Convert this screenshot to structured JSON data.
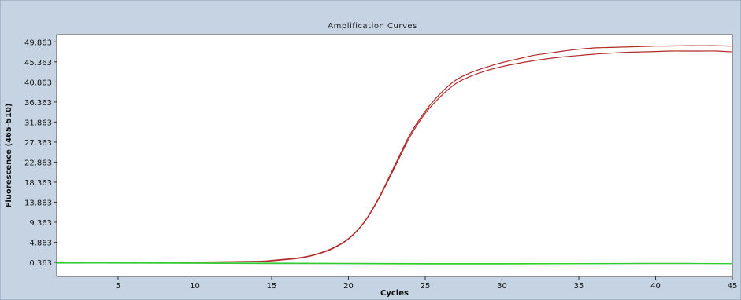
{
  "chart_data": {
    "type": "line",
    "title": "Amplification Curves",
    "xlabel": "Cycles",
    "ylabel": "Fluorescence (465-510)",
    "xlim": [
      1,
      45
    ],
    "ylim": [
      -2.8,
      51.5
    ],
    "xticks": [
      5,
      10,
      15,
      20,
      25,
      30,
      35,
      40,
      45
    ],
    "yticks": [
      0.363,
      4.863,
      9.363,
      13.863,
      18.363,
      22.863,
      27.363,
      31.863,
      36.363,
      40.863,
      45.363,
      49.863
    ],
    "ytick_labels": [
      "0.363",
      "4.863",
      "9.363",
      "13.863",
      "18.363",
      "22.863",
      "27.363",
      "31.863",
      "36.363",
      "40.863",
      "45.363",
      "49.863"
    ],
    "grid": false,
    "legend": "none",
    "colors": {
      "background": "#c5d3e3",
      "plot_area": "#ffffff",
      "sample_curve": "#b22a2a",
      "negative_curve": "#33cc33"
    },
    "series": [
      {
        "color": "#b22a2a",
        "x": [
          6.5,
          10,
          14,
          15,
          16,
          17,
          18,
          19,
          20,
          21,
          22,
          23,
          24,
          25,
          26,
          27,
          28,
          29,
          30,
          31,
          32,
          33,
          34,
          35,
          36,
          37,
          38,
          39,
          40,
          41,
          42,
          43,
          44,
          45
        ],
        "y": [
          0.4,
          0.45,
          0.6,
          0.8,
          1.1,
          1.5,
          2.3,
          3.6,
          5.7,
          9.3,
          15.0,
          22.0,
          29.0,
          34.3,
          38.3,
          41.3,
          43.0,
          44.2,
          45.2,
          46.0,
          46.8,
          47.3,
          47.8,
          48.2,
          48.5,
          48.6,
          48.7,
          48.8,
          48.9,
          48.95,
          49.0,
          49.0,
          49.0,
          48.9
        ]
      },
      {
        "color": "#b22a2a",
        "x": [
          6.5,
          10,
          14,
          15,
          16,
          17,
          18,
          19,
          20,
          21,
          22,
          23,
          24,
          25,
          26,
          27,
          28,
          29,
          30,
          31,
          32,
          33,
          34,
          35,
          36,
          37,
          38,
          39,
          40,
          41,
          42,
          43,
          44,
          45
        ],
        "y": [
          0.35,
          0.4,
          0.5,
          0.7,
          1.0,
          1.4,
          2.2,
          3.5,
          5.6,
          9.2,
          14.8,
          21.6,
          28.5,
          33.8,
          37.6,
          40.5,
          42.2,
          43.4,
          44.3,
          45.0,
          45.6,
          46.1,
          46.5,
          46.8,
          47.1,
          47.3,
          47.5,
          47.6,
          47.7,
          47.8,
          47.8,
          47.8,
          47.8,
          47.6
        ]
      },
      {
        "color": "#33cc33",
        "x": [
          1,
          5,
          10,
          15,
          20,
          25,
          30,
          35,
          40,
          45
        ],
        "y": [
          0.3,
          0.3,
          0.25,
          0.2,
          0.15,
          0.1,
          0.1,
          0.1,
          0.15,
          0.1
        ]
      },
      {
        "color": "#33cc33",
        "x": [
          1,
          5,
          10,
          15,
          20,
          25,
          30,
          35,
          40,
          45
        ],
        "y": [
          0.2,
          0.2,
          0.15,
          0.1,
          0.05,
          0.0,
          0.0,
          0.05,
          0.1,
          0.05
        ]
      }
    ]
  }
}
